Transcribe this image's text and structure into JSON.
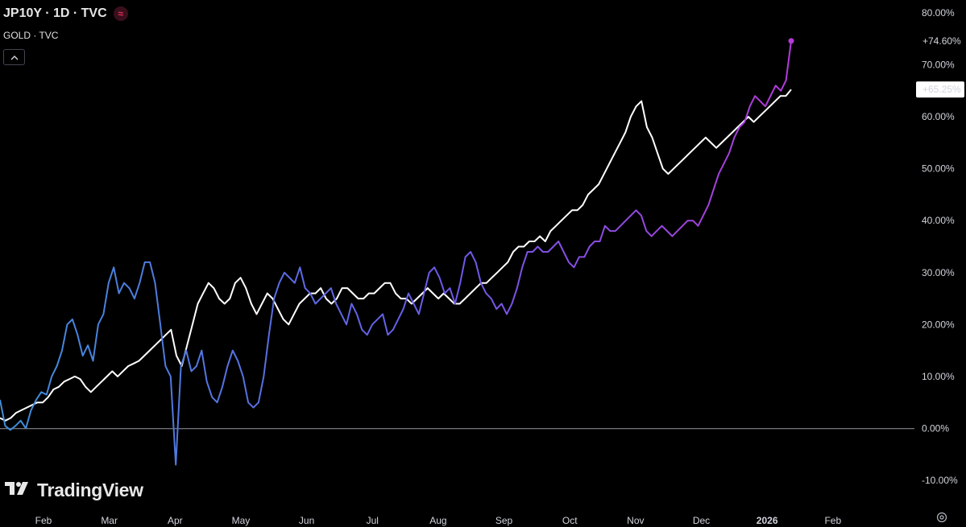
{
  "legend": {
    "main_title": "JP10Y · 1D · TVC",
    "compare_title": "GOLD · TVC",
    "icon": "wave-icon",
    "collapse_icon": "chevron-up-icon"
  },
  "branding": {
    "logo_text": "TradingView",
    "logo_icon": "tradingview-logo-icon"
  },
  "settings_icon": "gear-icon",
  "chart_data": {
    "type": "line",
    "x_ticks": [
      "Feb",
      "Mar",
      "Apr",
      "May",
      "Jun",
      "Jul",
      "Aug",
      "Sep",
      "Oct",
      "Nov",
      "Dec",
      "2026",
      "Feb"
    ],
    "y_ticks": [
      "80.00%",
      "70.00%",
      "60.00%",
      "50.00%",
      "40.00%",
      "30.00%",
      "20.00%",
      "10.00%",
      "0.00%",
      "-10.00%"
    ],
    "ylim": [
      -10,
      80
    ],
    "grid": false,
    "colors": {
      "gold_line": "#ffffff",
      "jp10y_start": "#3f8ed9",
      "jp10y_mid": "#6a5be8",
      "jp10y_end": "#b43ad9"
    },
    "series": [
      {
        "name": "JP10Y",
        "last_label": "+74.60%",
        "y": [
          5.5,
          0.5,
          -0.3,
          0.5,
          1.5,
          0,
          3.5,
          5.5,
          7,
          6.5,
          10,
          12,
          15,
          20,
          21,
          18,
          14,
          16,
          13,
          20,
          22,
          28,
          31,
          26,
          28,
          27,
          25,
          28,
          32,
          32,
          28,
          20,
          12,
          10,
          -7,
          12,
          15,
          11,
          12,
          15,
          9,
          6,
          5,
          8,
          12,
          15,
          13,
          10,
          5,
          4,
          5,
          10,
          18,
          25,
          28,
          30,
          29,
          28,
          31,
          27,
          26,
          24,
          25,
          26,
          27,
          24,
          22,
          20,
          24,
          22,
          19,
          18,
          20,
          21,
          22,
          18,
          19,
          21,
          23,
          26,
          24,
          22,
          26,
          30,
          31,
          29,
          26,
          27,
          24,
          28,
          33,
          34,
          32,
          28,
          26,
          25,
          23,
          24,
          22,
          24,
          27,
          31,
          34,
          34,
          35,
          34,
          34,
          35,
          36,
          34,
          32,
          31,
          33,
          33,
          35,
          36,
          36,
          39,
          38,
          38,
          39,
          40,
          41,
          42,
          41,
          38,
          37,
          38,
          39,
          38,
          37,
          38,
          39,
          40,
          40,
          39,
          41,
          43,
          46,
          49,
          51,
          53,
          56,
          58,
          59,
          62,
          64,
          63,
          62,
          64,
          66,
          65,
          67,
          74.6
        ]
      },
      {
        "name": "GOLD",
        "last_label": "+65.25%",
        "y": [
          2,
          1.5,
          2,
          3,
          3.5,
          4,
          4.5,
          5,
          5,
          6,
          7.5,
          8,
          9,
          9.5,
          10,
          9.5,
          8,
          7,
          8,
          9,
          10,
          11,
          10,
          11,
          12,
          12.5,
          13,
          14,
          15,
          16,
          17,
          18,
          19,
          14,
          12,
          16,
          20,
          24,
          26,
          28,
          27,
          25,
          24,
          25,
          28,
          29,
          27,
          24,
          22,
          24,
          26,
          25,
          23,
          21,
          20,
          22,
          24,
          25,
          26,
          26,
          27,
          25,
          24,
          25,
          27,
          27,
          26,
          25,
          25,
          26,
          26,
          27,
          28,
          28,
          26,
          25,
          25,
          24,
          25,
          26,
          27,
          26,
          25,
          26,
          25,
          24,
          24,
          25,
          26,
          27,
          28,
          28,
          29,
          30,
          31,
          32,
          34,
          35,
          35,
          36,
          36,
          37,
          36,
          38,
          39,
          40,
          41,
          42,
          42,
          43,
          45,
          46,
          47,
          49,
          51,
          53,
          55,
          57,
          60,
          62,
          63,
          58,
          56,
          53,
          50,
          49,
          50,
          51,
          52,
          53,
          54,
          55,
          56,
          55,
          54,
          55,
          56,
          57,
          58,
          59,
          60,
          59,
          60,
          61,
          62,
          63,
          64,
          64,
          65.25
        ]
      }
    ]
  }
}
